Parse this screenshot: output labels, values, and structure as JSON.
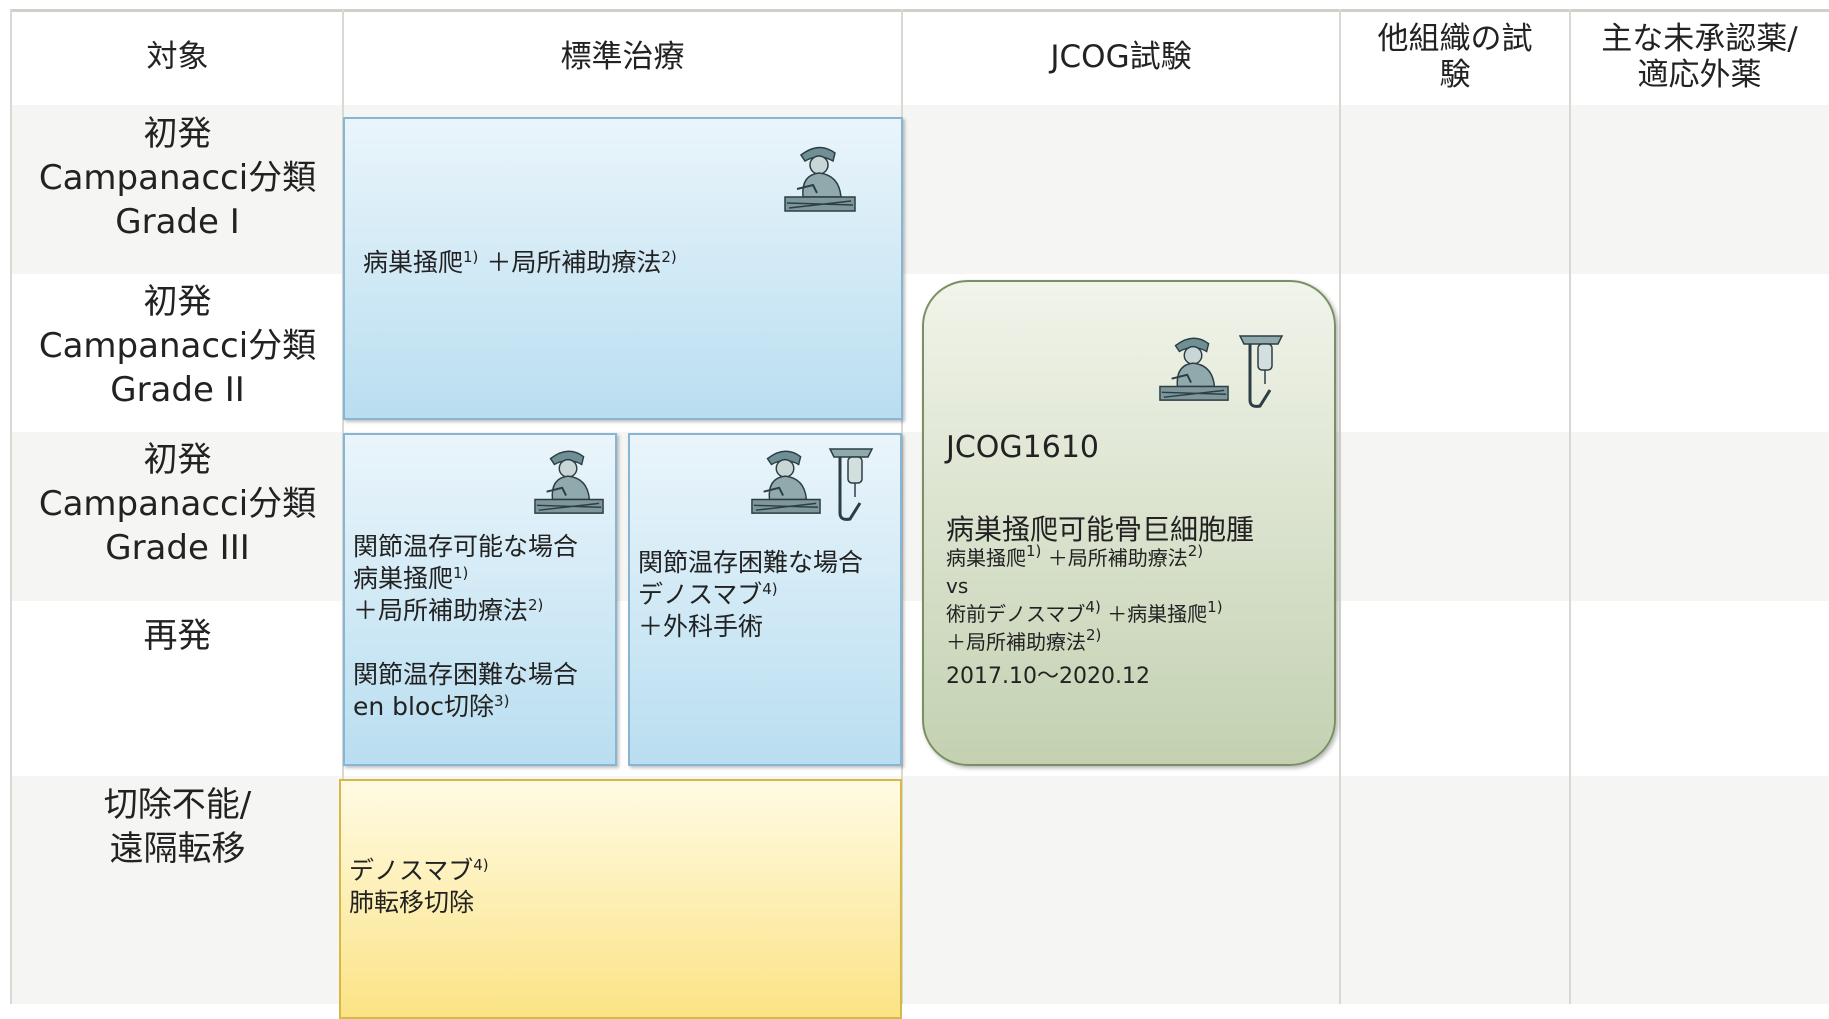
{
  "header": {
    "columns": [
      [
        "対象"
      ],
      [
        "標準治療"
      ],
      [
        "JCOG試験"
      ],
      [
        "他組織の試",
        "験"
      ],
      [
        "主な未承認薬/",
        "適応外薬"
      ]
    ]
  },
  "rows": [
    {
      "label": [
        "初発",
        "Campanacci分類",
        "Grade I"
      ]
    },
    {
      "label": [
        "初発",
        "Campanacci分類",
        "Grade II"
      ]
    },
    {
      "label": [
        "初発",
        "Campanacci分類",
        "Grade III"
      ]
    },
    {
      "label": [
        "再発"
      ]
    },
    {
      "label": [
        "切除不能/",
        "遠隔転移"
      ]
    }
  ],
  "boxes": {
    "curettage": {
      "paragraphs": [
        [
          [
            "病巣掻爬",
            {
              "sup": "1)"
            },
            " ＋局所補助療法",
            {
              "sup": "2)"
            }
          ]
        ]
      ]
    },
    "joint_preserving": {
      "paragraphs": [
        [
          [
            "関節温存可能な場合"
          ],
          [
            "病巣掻爬",
            {
              "sup": "1)"
            }
          ],
          [
            "＋局所補助療法",
            {
              "sup": "2)"
            }
          ]
        ],
        [
          [
            "関節温存困難な場合"
          ],
          [
            "en bloc切除",
            {
              "sup": "3)"
            }
          ]
        ]
      ]
    },
    "denosumab_surgery": {
      "paragraphs": [
        [
          [
            "関節温存困難な場合"
          ],
          [
            "デノスマブ",
            {
              "sup": "4)"
            }
          ],
          [
            "＋外科手術"
          ]
        ]
      ]
    },
    "unresectable": {
      "paragraphs": [
        [
          [
            "デノスマブ",
            {
              "sup": "4)"
            }
          ],
          [
            "肺転移切除"
          ]
        ]
      ]
    },
    "jcog": {
      "trial_id": "JCOG1610",
      "title": "病巣掻爬可能骨巨細胞腫",
      "design": [
        [
          "病巣掻爬",
          {
            "sup": "1)"
          },
          " ＋局所補助療法",
          {
            "sup": "2)"
          }
        ],
        [
          "vs"
        ],
        [
          "術前デノスマブ",
          {
            "sup": "4)"
          },
          " ＋病巣掻爬",
          {
            "sup": "1)"
          }
        ],
        [
          "＋局所補助療法",
          {
            "sup": "2)"
          }
        ]
      ],
      "period": "2017.10～2020.12"
    }
  }
}
